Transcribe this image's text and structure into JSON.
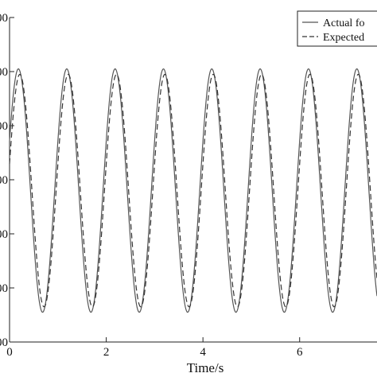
{
  "chart_data": {
    "type": "line",
    "xlabel": "Time/s",
    "ylabel": "",
    "xlim": [
      0,
      7.6
    ],
    "ylim": [
      0,
      6
    ],
    "grid": false,
    "legend_position": "top-right",
    "x_ticks": [
      {
        "value": 0,
        "label": "0"
      },
      {
        "value": 2,
        "label": "2"
      },
      {
        "value": 4,
        "label": "4"
      },
      {
        "value": 6,
        "label": "6"
      }
    ],
    "y_ticks": [
      {
        "value": 0,
        "label": "00"
      },
      {
        "value": 1,
        "label": "00"
      },
      {
        "value": 2,
        "label": "00"
      },
      {
        "value": 3,
        "label": "00"
      },
      {
        "value": 4,
        "label": "00"
      },
      {
        "value": 5,
        "label": "00"
      },
      {
        "value": 6,
        "label": "00"
      }
    ],
    "series": [
      {
        "name": "Actual fo",
        "style": "solid",
        "color": "#555555",
        "offset": 2.8,
        "amplitude": 2.25,
        "period": 1.0,
        "phase": 0.0,
        "x_start": 0,
        "x_end": 7.6,
        "samples": 700
      },
      {
        "name": "Expected",
        "style": "dashed",
        "color": "#333333",
        "offset": 2.8,
        "amplitude": 2.15,
        "period": 1.0,
        "phase": 0.03,
        "x_start": 0,
        "x_end": 7.6,
        "samples": 700
      }
    ]
  }
}
